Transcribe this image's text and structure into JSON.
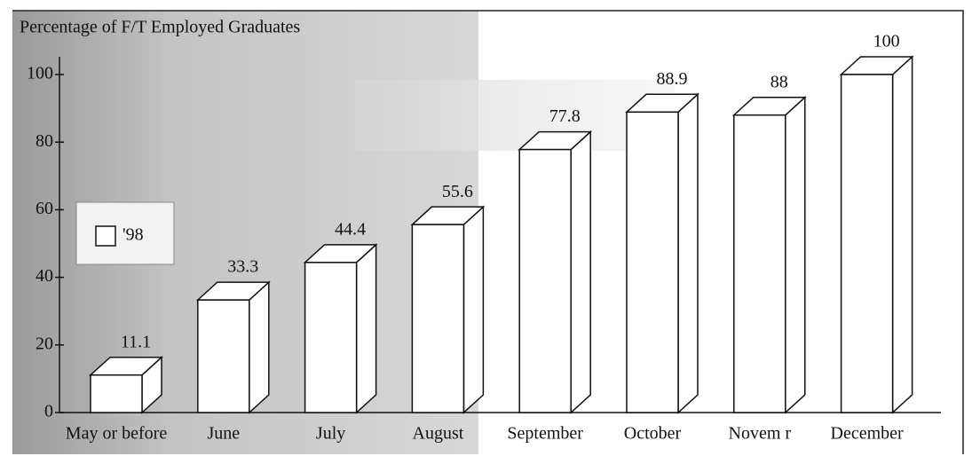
{
  "chart_data": {
    "type": "bar",
    "title": "Percentage of F/T Employed Graduates",
    "categories": [
      "May or before",
      "June",
      "July",
      "August",
      "September",
      "October",
      "Novem r",
      "December"
    ],
    "series": [
      {
        "name": "'98",
        "color": "#ffffff",
        "values": [
          11.1,
          33.3,
          44.4,
          55.6,
          77.8,
          88.9,
          88,
          100
        ]
      }
    ],
    "ylim": [
      0,
      100
    ],
    "yticks": [
      0,
      20,
      40,
      60,
      80,
      100
    ],
    "grid": false,
    "legend": "left"
  }
}
